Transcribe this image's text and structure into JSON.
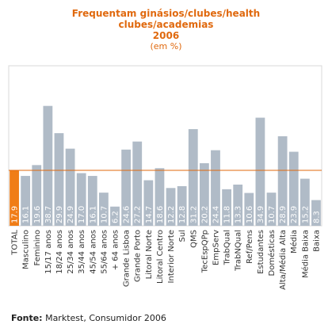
{
  "chart_data": {
    "type": "bar",
    "title": [
      "Frequentam ginásios/clubes/health",
      "clubes/academias",
      "2006"
    ],
    "subtitle": "(em %)",
    "categories": [
      "TOTAL",
      "Masculino",
      "Feminino",
      "15/17 anos",
      "18/24 anos",
      "25/34 anos",
      "35/44 anos",
      "45/54 anos",
      "55/64 anos",
      "+ 64 anos",
      "Grande Lisboa",
      "Grande Porto",
      "Litoral Norte",
      "Litoral Centro",
      "Interior Norte",
      "Sul",
      "QMS",
      "TecEspQPp",
      "EmpServ",
      "TrabQual",
      "TrabNQual",
      "Ref/Pens",
      "Estudantes",
      "Domésticas",
      "Alta/Média Alta",
      "Média",
      "Média Baixa",
      "Baixa"
    ],
    "values": [
      17.9,
      16.1,
      19.6,
      38.7,
      29.9,
      24.9,
      17.0,
      16.1,
      10.7,
      6.2,
      24.6,
      27.2,
      14.7,
      18.6,
      12.2,
      12.8,
      31.2,
      20.2,
      24.4,
      11.8,
      13.3,
      10.6,
      34.9,
      10.7,
      28.9,
      23.9,
      15.2,
      8.3
    ],
    "value_labels": [
      "17.9",
      "16.1",
      "19.6",
      "38.7",
      "29.9",
      "24.9",
      "17.0",
      "16.1",
      "10.7",
      "6.2",
      "24.6",
      "27.2",
      "14.7",
      "18.6",
      "12.2",
      "12.8",
      "31.2",
      "20.2",
      "24.4",
      "11.8",
      "13.3",
      "10.6",
      "34.9",
      "10.7",
      "28.9",
      "23.9",
      "15.2",
      "8.3"
    ],
    "ylim": [
      0,
      45
    ],
    "reference_line": 17.9,
    "highlight_index": 0,
    "colors": {
      "bar": "#b0bbc7",
      "highlight": "#f07d17",
      "reference_line": "#e0690e",
      "frame": "#d8d8d8"
    },
    "grid": false,
    "legend": "none"
  },
  "source": {
    "label": "Fonte:",
    "text": " Marktest, Consumidor 2006"
  }
}
